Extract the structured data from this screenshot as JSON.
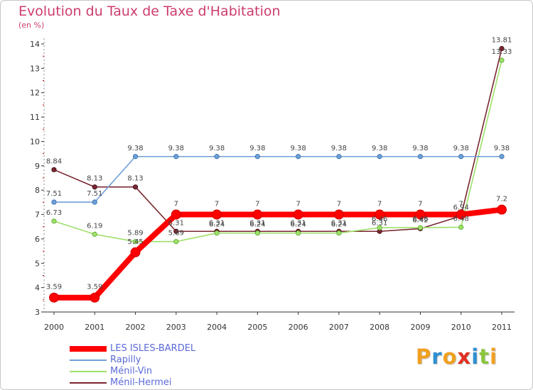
{
  "chart_data": {
    "type": "line",
    "title": "Evolution du Taux de Taxe d'Habitation",
    "subtitle": "(en %)",
    "xlabel": "",
    "ylabel": "(en %)",
    "categories": [
      "2000",
      "2001",
      "2002",
      "2003",
      "2004",
      "2005",
      "2006",
      "2007",
      "2008",
      "2009",
      "2010",
      "2011"
    ],
    "ylim": [
      3,
      14
    ],
    "yticks": [
      3,
      4,
      5,
      6,
      7,
      8,
      9,
      10,
      11,
      12,
      13,
      14
    ],
    "grid": false,
    "legend_position": "bottom-left",
    "series": [
      {
        "name": "LES ISLES-BARDEL",
        "color": "#ff0000",
        "values": [
          3.59,
          3.59,
          5.45,
          7,
          7,
          7,
          7,
          7,
          7,
          7,
          7,
          7.2
        ],
        "labels": [
          "3.59",
          "3.59",
          "5.45",
          "7",
          "7",
          "7",
          "7",
          "7",
          "7",
          "7",
          "7",
          "7.2"
        ]
      },
      {
        "name": "Rapilly",
        "color": "#6f9fd8",
        "values": [
          7.51,
          7.51,
          9.38,
          9.38,
          9.38,
          9.38,
          9.38,
          9.38,
          9.38,
          9.38,
          9.38,
          9.38
        ],
        "labels": [
          "7.51",
          "7.51",
          "9.38",
          "9.38",
          "9.38",
          "9.38",
          "9.38",
          "9.38",
          "9.38",
          "9.38",
          "9.38",
          "9.38"
        ]
      },
      {
        "name": "Ménil-Vin",
        "color": "#9ee06a",
        "values": [
          6.73,
          6.19,
          5.89,
          5.89,
          6.24,
          6.24,
          6.24,
          6.24,
          6.46,
          6.46,
          6.48,
          13.33
        ],
        "labels": [
          "6.73",
          "6.19",
          "5.89",
          "5.89",
          "6.24",
          "6.24",
          "6.24",
          "6.24",
          "6.46",
          "6.46",
          "6.48",
          "13.33"
        ]
      },
      {
        "name": "Ménil-Hermei",
        "color": "#7a2630",
        "values": [
          8.84,
          8.13,
          8.13,
          6.31,
          6.31,
          6.31,
          6.31,
          6.31,
          6.31,
          6.42,
          6.94,
          13.81
        ],
        "labels": [
          "8.84",
          "8.13",
          "8.13",
          "6.31",
          "6.31",
          "6.31",
          "6.31",
          "6.31",
          "6.31",
          "6.42",
          "6.94",
          "13.81"
        ]
      }
    ]
  },
  "branding": {
    "letters": [
      {
        "char": "P",
        "color": "#f0a020"
      },
      {
        "char": "r",
        "color": "#2f8fd0"
      },
      {
        "char": "o",
        "color": "#f0a020"
      },
      {
        "char": "x",
        "color": "#e03020"
      },
      {
        "char": "i",
        "color": "#2f8fd0"
      },
      {
        "char": "t",
        "color": "#8cc63e"
      },
      {
        "char": "i",
        "color": "#f0a020"
      }
    ]
  }
}
